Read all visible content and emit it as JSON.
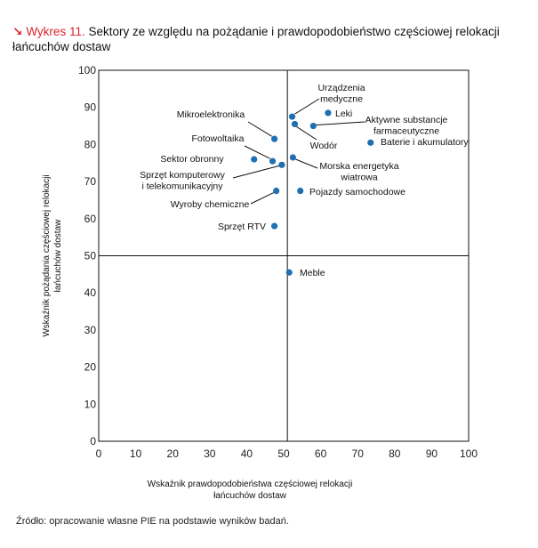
{
  "title": {
    "label": "Wykres 11.",
    "text": "Sektory ze względu na pożądanie i prawdopodobieństwo częściowej relokacji łańcuchów dostaw"
  },
  "source": "Źródło: opracowanie własne PIE na podstawie wyników badań.",
  "colors": {
    "accent": "#d9262c",
    "point": "#1f6fb2",
    "axis": "#111111"
  },
  "chart_data": {
    "type": "scatter",
    "xlabel": [
      "Wskaźnik prawdopodobieństwa częściowej relokacji",
      "łańcuchów dostaw"
    ],
    "ylabel": [
      "Wskaźnik pożądania częściowej relokacji",
      "łańcuchów dostaw"
    ],
    "xlim": [
      0,
      100
    ],
    "ylim": [
      0,
      100
    ],
    "xticks": [
      0,
      10,
      20,
      30,
      40,
      50,
      60,
      70,
      80,
      90,
      100
    ],
    "yticks": [
      0,
      10,
      20,
      30,
      40,
      50,
      60,
      70,
      80,
      90,
      100
    ],
    "reference_lines": {
      "x": 51,
      "y": 50
    },
    "grid": false,
    "points": [
      {
        "label": "Urządzenia medyczne",
        "x": 52.3,
        "y": 87.5
      },
      {
        "label": "Leki",
        "x": 62,
        "y": 88.5
      },
      {
        "label": "Aktywne substancje farmaceutyczne",
        "x": 58,
        "y": 85
      },
      {
        "label": "Mikroelektronika",
        "x": 47.5,
        "y": 81.5
      },
      {
        "label": "Wodór",
        "x": 53,
        "y": 85.5
      },
      {
        "label": "Baterie i akumulatory",
        "x": 73.5,
        "y": 80.5
      },
      {
        "label": "Fotowoltaika",
        "x": 47,
        "y": 75.5
      },
      {
        "label": "Sektor obronny",
        "x": 42,
        "y": 76
      },
      {
        "label": "Morska energetyka wiatrowa",
        "x": 52.5,
        "y": 76.5
      },
      {
        "label": "Sprzęt komputerowy i telekomunikacyjny",
        "x": 49.5,
        "y": 74.5
      },
      {
        "label": "Pojazdy samochodowe",
        "x": 54.5,
        "y": 67.5
      },
      {
        "label": "Wyroby chemiczne",
        "x": 48,
        "y": 67.5
      },
      {
        "label": "Sprzęt RTV",
        "x": 47.5,
        "y": 58
      },
      {
        "label": "Meble",
        "x": 51.5,
        "y": 45.5
      }
    ]
  }
}
